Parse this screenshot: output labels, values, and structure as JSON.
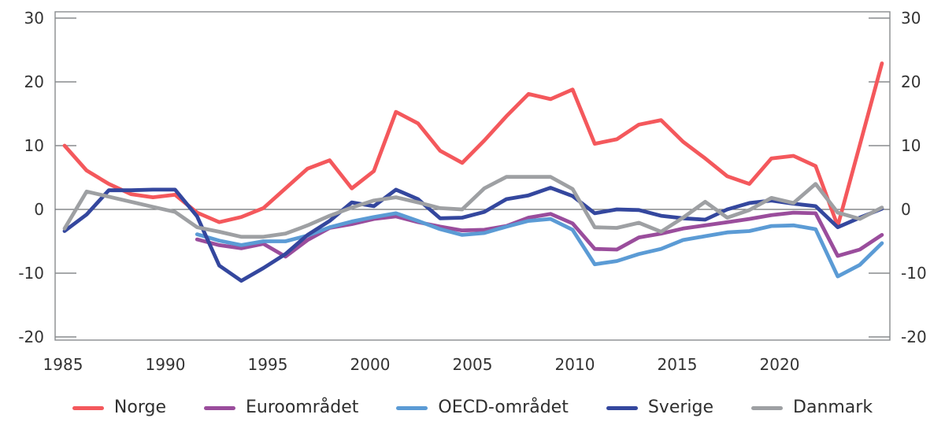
{
  "chart_data": {
    "type": "line",
    "title": "",
    "xlabel": "",
    "ylabel": "",
    "x": [
      1985,
      1986,
      1987,
      1988,
      1989,
      1990,
      1991,
      1992,
      1993,
      1994,
      1995,
      1996,
      1997,
      1998,
      1999,
      2000,
      2001,
      2002,
      2003,
      2004,
      2005,
      2006,
      2007,
      2008,
      2009,
      2010,
      2011,
      2012,
      2013,
      2014,
      2015,
      2016,
      2017,
      2018,
      2019,
      2020,
      2021,
      2022
    ],
    "series": [
      {
        "name": "Norge",
        "color": "#f4585c",
        "values": [
          10.0,
          6.1,
          4.0,
          2.4,
          1.9,
          2.3,
          -0.5,
          -2.0,
          -1.2,
          0.2,
          3.3,
          6.4,
          7.7,
          3.3,
          6.0,
          15.3,
          13.5,
          9.2,
          7.3,
          10.8,
          14.6,
          18.1,
          17.3,
          18.8,
          10.3,
          11.0,
          13.3,
          14.0,
          10.6,
          8.0,
          5.2,
          4.0,
          8.0,
          8.4,
          6.8,
          -2.6,
          10.1,
          22.9
        ]
      },
      {
        "name": "Euroområdet",
        "color": "#9a4d9c",
        "values": [
          null,
          null,
          null,
          null,
          null,
          null,
          -4.7,
          -5.6,
          -6.1,
          -5.4,
          -7.4,
          -4.8,
          -2.9,
          -2.3,
          -1.5,
          -1.1,
          -2.0,
          -2.7,
          -3.3,
          -3.2,
          -2.6,
          -1.3,
          -0.7,
          -2.2,
          -6.2,
          -6.3,
          -4.4,
          -3.8,
          -3.0,
          -2.5,
          -2.0,
          -1.5,
          -0.9,
          -0.5,
          -0.6,
          -7.3,
          -6.3,
          -4.0
        ]
      },
      {
        "name": "OECD-området",
        "color": "#5b9bd5",
        "values": [
          null,
          null,
          null,
          null,
          null,
          null,
          -3.9,
          -4.9,
          -5.6,
          -5.0,
          -5.0,
          -4.1,
          -2.8,
          -1.9,
          -1.2,
          -0.6,
          -1.8,
          -3.1,
          -4.0,
          -3.7,
          -2.7,
          -1.8,
          -1.5,
          -3.2,
          -8.6,
          -8.1,
          -7.0,
          -6.2,
          -4.8,
          -4.2,
          -3.6,
          -3.4,
          -2.6,
          -2.5,
          -3.1,
          -10.5,
          -8.7,
          -5.3
        ]
      },
      {
        "name": "Sverige",
        "color": "#34479e",
        "values": [
          -3.4,
          -0.8,
          3.0,
          3.0,
          3.1,
          3.1,
          -1.1,
          -8.8,
          -11.2,
          -9.2,
          -7.0,
          -4.0,
          -1.8,
          1.1,
          0.5,
          3.1,
          1.6,
          -1.4,
          -1.3,
          -0.4,
          1.6,
          2.2,
          3.4,
          2.1,
          -0.6,
          0.0,
          -0.1,
          -1.0,
          -1.4,
          -1.6,
          0.0,
          1.0,
          1.4,
          0.9,
          0.5,
          -2.8,
          -1.3,
          0.1
        ]
      },
      {
        "name": "Danmark",
        "color": "#9ea0a3",
        "values": [
          -3.0,
          2.8,
          2.0,
          1.2,
          0.4,
          -0.4,
          -2.8,
          -3.5,
          -4.3,
          -4.3,
          -3.8,
          -2.5,
          -1.0,
          0.3,
          1.4,
          1.9,
          1.1,
          0.2,
          0.0,
          3.3,
          5.1,
          5.1,
          5.1,
          3.2,
          -2.8,
          -2.9,
          -2.1,
          -3.5,
          -1.3,
          1.2,
          -1.3,
          -0.1,
          1.8,
          1.0,
          4.0,
          -0.5,
          -1.5,
          0.3
        ]
      }
    ],
    "y_ticks": [
      30,
      20,
      10,
      0,
      -10,
      -20
    ],
    "y_tick_labels": [
      "30",
      "20",
      "10",
      "0",
      "-10",
      "-20"
    ],
    "x_tick_labels": [
      "1985",
      "1990",
      "1995",
      "2000",
      "2005",
      "2010",
      "2015",
      "2020"
    ],
    "ylim": [
      -20.6,
      31
    ],
    "grid": "zero-line-only",
    "legend_position": "bottom",
    "axis_color": "#888b8e",
    "zero_line_color": "#6e7073",
    "text_color": "#333333"
  }
}
